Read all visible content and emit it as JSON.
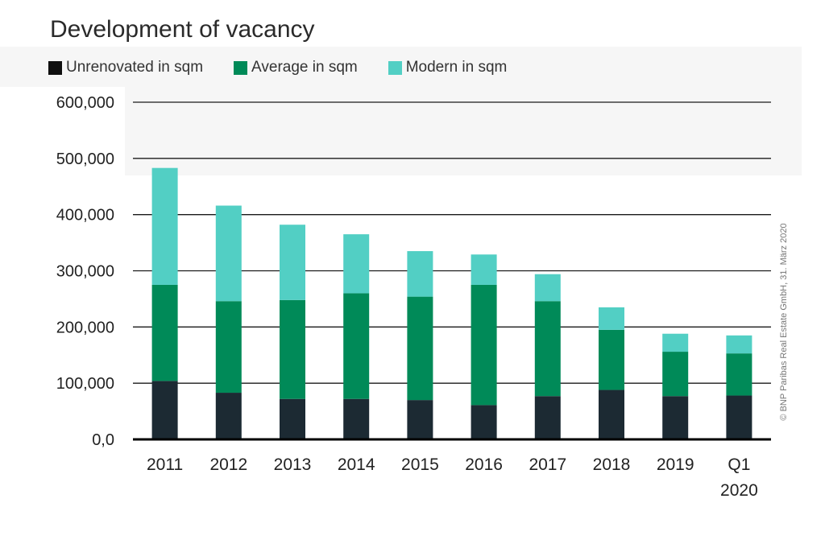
{
  "chart_data": {
    "type": "bar",
    "stacked": true,
    "title": "Development of vacancy",
    "categories": [
      "2011",
      "2012",
      "2013",
      "2014",
      "2015",
      "2016",
      "2017",
      "2018",
      "2019",
      "Q1 2020"
    ],
    "category_lines": [
      [
        "2011"
      ],
      [
        "2012"
      ],
      [
        "2013"
      ],
      [
        "2014"
      ],
      [
        "2015"
      ],
      [
        "2016"
      ],
      [
        "2017"
      ],
      [
        "2018"
      ],
      [
        "2019"
      ],
      [
        "Q1",
        "2020"
      ]
    ],
    "series": [
      {
        "name": "Unrenovated in sqm",
        "color": "#1c2a33",
        "legend_color": "#0f0f0f",
        "values": [
          104000,
          83000,
          72000,
          72000,
          70000,
          61000,
          77000,
          88000,
          77000,
          78000
        ]
      },
      {
        "name": "Average in sqm",
        "color": "#008a58",
        "legend_color": "#008a58",
        "values": [
          171000,
          163000,
          176000,
          188000,
          184000,
          214000,
          169000,
          107000,
          79000,
          75000
        ]
      },
      {
        "name": "Modern in sqm",
        "color": "#52cfc4",
        "legend_color": "#52cfc4",
        "values": [
          208000,
          170000,
          134000,
          105000,
          81000,
          54000,
          48000,
          40000,
          32000,
          32000
        ]
      }
    ],
    "ylim": [
      0,
      600000
    ],
    "y_ticks": [
      0,
      100000,
      200000,
      300000,
      400000,
      500000,
      600000
    ],
    "y_tick_labels": [
      "0,0",
      "100,000",
      "200,000",
      "300,000",
      "400,000",
      "500,000",
      "600,000"
    ],
    "grid": true,
    "legend_position": "top-left",
    "xlabel": "",
    "ylabel": ""
  },
  "credit": "© BNP Paribas Real Estate GmbH, 31. März 2020"
}
